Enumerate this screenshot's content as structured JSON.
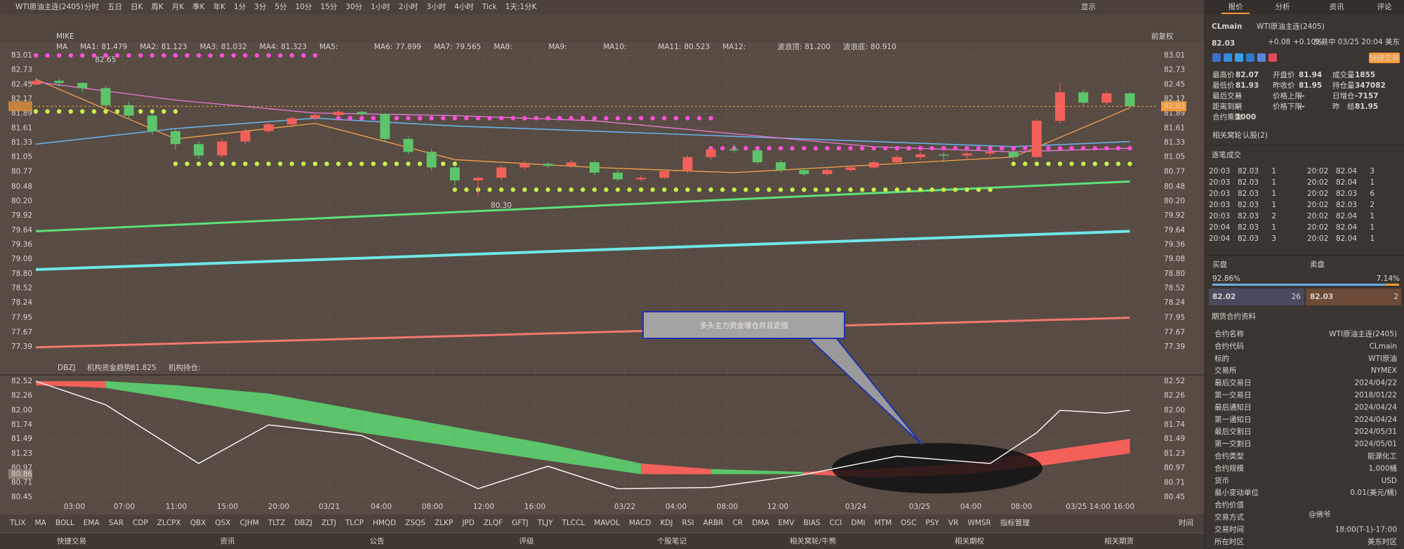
{
  "toolbar": {
    "symbol": "WTI原油主连(2405)",
    "periods": [
      "分时",
      "五日",
      "日K",
      "周K",
      "月K",
      "季K",
      "年K",
      "1分",
      "3分",
      "5分",
      "10分",
      "15分",
      "30分",
      "1小时",
      "2小时",
      "3小时",
      "4小时",
      "Tick",
      "1天:1分K"
    ],
    "active_period": 13,
    "display": "显示"
  },
  "subbar": {
    "template": "MIKE",
    "adjust": "前复权"
  },
  "ma_legend": {
    "title": "MA",
    "items": [
      {
        "label": "MA1:",
        "value": "81.479",
        "color": "#f5a04a"
      },
      {
        "label": "MA2:",
        "value": "81.123",
        "color": "#6aaee8"
      },
      {
        "label": "MA3:",
        "value": "81.032",
        "color": "#e77ad8"
      },
      {
        "label": "MA4:",
        "value": "81.323",
        "color": "#7cc6e0"
      },
      {
        "label": "MA5:",
        "value": "",
        "color": "#8ed36b"
      },
      {
        "label": "MA6:",
        "value": "77.899",
        "color": "#f0776f"
      },
      {
        "label": "MA7:",
        "value": "79.565",
        "color": "#6fe6e6"
      },
      {
        "label": "MA8:",
        "value": "",
        "color": "#e8d24a"
      },
      {
        "label": "MA9:",
        "value": "",
        "color": "#b08ee8"
      },
      {
        "label": "MA10:",
        "value": "",
        "color": "#c8c8c8"
      },
      {
        "label": "MA11:",
        "value": "80.523",
        "color": "#5ee07a"
      },
      {
        "label": "MA12:",
        "value": "",
        "color": "#a8e05e"
      },
      {
        "label": "波浪顶:",
        "value": "81.200",
        "color": "#ff4fd8"
      },
      {
        "label": "波浪底:",
        "value": "80.910",
        "color": "#c8f04a"
      }
    ]
  },
  "price_chart": {
    "type": "candlestick",
    "ylim": [
      77.39,
      83.01
    ],
    "yticks": [
      83.01,
      82.73,
      82.45,
      82.17,
      81.89,
      81.61,
      81.33,
      81.05,
      80.77,
      80.48,
      {
        "value": 80.2,
        "label": "80.20"
      },
      79.92,
      79.64,
      79.36,
      79.08,
      {
        "value": 78.8,
        "label": "78.80"
      },
      78.52,
      78.24,
      77.95,
      77.67,
      77.39
    ],
    "last_price": 82.03,
    "up_color": "#f3605a",
    "down_color": "#5cc46b",
    "candles": [
      [
        82.45,
        82.58,
        82.42,
        82.52
      ],
      [
        82.52,
        82.56,
        82.4,
        82.48
      ],
      [
        82.48,
        82.5,
        82.3,
        82.38
      ],
      [
        82.38,
        82.42,
        81.98,
        82.05
      ],
      [
        82.05,
        82.12,
        81.78,
        81.85
      ],
      [
        81.85,
        81.9,
        81.48,
        81.55
      ],
      [
        81.55,
        81.6,
        81.2,
        81.3
      ],
      [
        81.3,
        81.36,
        81.02,
        81.08
      ],
      [
        81.08,
        81.4,
        81.04,
        81.35
      ],
      [
        81.35,
        81.6,
        81.3,
        81.55
      ],
      [
        81.55,
        81.72,
        81.5,
        81.68
      ],
      [
        81.68,
        81.84,
        81.62,
        81.8
      ],
      [
        81.8,
        81.9,
        81.76,
        81.86
      ],
      [
        81.86,
        81.96,
        81.82,
        81.92
      ],
      [
        81.92,
        81.95,
        81.84,
        81.88
      ],
      [
        81.88,
        81.9,
        81.34,
        81.4
      ],
      [
        81.4,
        81.45,
        81.1,
        81.15
      ],
      [
        81.15,
        81.2,
        80.8,
        80.85
      ],
      [
        80.85,
        80.9,
        80.5,
        80.6
      ],
      [
        80.6,
        80.7,
        80.3,
        80.65
      ],
      [
        80.65,
        80.9,
        80.6,
        80.85
      ],
      [
        80.85,
        80.98,
        80.8,
        80.92
      ],
      [
        80.92,
        80.96,
        80.84,
        80.88
      ],
      [
        80.88,
        81.0,
        80.85,
        80.95
      ],
      [
        80.95,
        80.98,
        80.7,
        80.75
      ],
      [
        80.75,
        80.8,
        80.58,
        80.62
      ],
      [
        80.62,
        80.7,
        80.58,
        80.65
      ],
      [
        80.65,
        80.82,
        80.62,
        80.78
      ],
      [
        80.78,
        81.1,
        80.74,
        81.05
      ],
      [
        81.05,
        81.26,
        81.0,
        81.2
      ],
      [
        81.2,
        81.3,
        81.12,
        81.18
      ],
      [
        81.18,
        81.22,
        80.9,
        80.95
      ],
      [
        80.95,
        81.0,
        80.75,
        80.8
      ],
      [
        80.8,
        80.85,
        80.68,
        80.72
      ],
      [
        80.72,
        80.84,
        80.68,
        80.8
      ],
      [
        80.8,
        80.9,
        80.76,
        80.85
      ],
      [
        80.85,
        81.0,
        80.82,
        80.95
      ],
      [
        80.95,
        81.1,
        80.92,
        81.05
      ],
      [
        81.05,
        81.15,
        81.0,
        81.1
      ],
      [
        81.1,
        81.14,
        80.95,
        81.08
      ],
      [
        81.08,
        81.16,
        81.02,
        81.12
      ],
      [
        81.12,
        81.2,
        81.06,
        81.15
      ],
      [
        81.15,
        81.18,
        81.0,
        81.05
      ],
      [
        81.05,
        81.8,
        81.02,
        81.75
      ],
      [
        81.75,
        82.48,
        81.7,
        82.3
      ],
      [
        82.3,
        82.35,
        82.04,
        82.1
      ],
      [
        82.1,
        82.32,
        82.06,
        82.28
      ],
      [
        82.28,
        82.3,
        82.0,
        82.03
      ]
    ],
    "lines": [
      {
        "color": "#f5a04a",
        "width": 1.3,
        "x": [
          0,
          6,
          12,
          18,
          24,
          30,
          36,
          42,
          47
        ],
        "values": [
          82.55,
          81.4,
          81.7,
          81.0,
          80.85,
          80.75,
          80.9,
          81.05,
          82.0
        ]
      },
      {
        "color": "#6aaee8",
        "width": 1.6,
        "x": [
          0,
          6,
          12,
          18,
          24,
          30,
          36,
          42,
          47
        ],
        "values": [
          81.3,
          81.6,
          81.8,
          81.65,
          81.55,
          81.45,
          81.35,
          81.25,
          81.35
        ]
      },
      {
        "color": "#e77ad8",
        "width": 1.3,
        "x": [
          0,
          6,
          12,
          18,
          24,
          30,
          36,
          42,
          47
        ],
        "values": [
          82.5,
          82.15,
          81.9,
          81.85,
          81.75,
          81.5,
          81.25,
          81.15,
          81.22
        ]
      },
      {
        "color": "#5ee07a",
        "width": 3,
        "x": [
          0,
          47
        ],
        "values": [
          79.62,
          80.58
        ]
      },
      {
        "color": "#6fe6e6",
        "width": 4,
        "x": [
          0,
          47
        ],
        "values": [
          78.88,
          79.62
        ]
      },
      {
        "color": "#f0776f",
        "width": 3,
        "x": [
          0,
          47
        ],
        "values": [
          77.38,
          77.95
        ]
      }
    ],
    "dots": [
      {
        "color": "#ff4fd8",
        "level": 83.01,
        "from": 0,
        "to": 12
      },
      {
        "color": "#ff4fd8",
        "level": 81.8,
        "from": 13,
        "to": 29
      },
      {
        "color": "#ff4fd8",
        "level": 81.22,
        "from": 29,
        "to": 47
      },
      {
        "color": "#c8f04a",
        "level": 81.93,
        "from": 0,
        "to": 6
      },
      {
        "color": "#c8f04a",
        "level": 80.92,
        "from": 6,
        "to": 18
      },
      {
        "color": "#c8f04a",
        "level": 80.42,
        "from": 18,
        "to": 41
      },
      {
        "color": "#c8f04a",
        "level": 80.92,
        "from": 42,
        "to": 47
      }
    ],
    "notes": [
      {
        "at": 2,
        "value": 82.65
      },
      {
        "at": 19,
        "value": {
          "value": 80.3,
          "label": "80.30"
        }
      }
    ]
  },
  "indicator": {
    "name": "DBZJ",
    "trend_label": "机构资金趋势:",
    "trend_value": "81.825",
    "hold_label": "机构持仓:",
    "ylim": [
      80.45,
      82.52
    ],
    "yticks": [
      82.52,
      82.26,
      {
        "value": 82.0,
        "label": "82.00"
      },
      81.74,
      81.49,
      81.23,
      80.97,
      80.71,
      80.45
    ],
    "current": 80.86,
    "white_line": {
      "x": [
        0,
        3,
        7,
        10,
        14,
        19,
        22,
        25,
        29,
        33,
        37,
        41,
        43,
        44,
        46,
        47
      ],
      "values": [
        82.52,
        82.1,
        81.05,
        81.74,
        81.55,
        80.6,
        81.0,
        80.6,
        80.62,
        80.85,
        81.18,
        81.05,
        81.6,
        82.0,
        81.95,
        82.0
      ]
    },
    "ribbon": {
      "x": [
        0,
        3,
        6,
        10,
        14,
        18,
        22,
        26,
        29,
        33,
        36,
        40,
        43,
        47
      ],
      "upper": [
        82.52,
        82.52,
        82.45,
        82.3,
        82.0,
        81.7,
        81.4,
        81.05,
        80.95,
        80.9,
        80.95,
        81.05,
        81.25,
        81.49
      ],
      "lower": [
        82.45,
        82.4,
        82.2,
        81.9,
        81.6,
        81.35,
        81.1,
        80.86,
        80.86,
        80.86,
        80.8,
        80.86,
        81.0,
        81.23
      ],
      "colors": [
        "#f3605a",
        "#5cc46b",
        "#5cc46b",
        "#5cc46b",
        "#5cc46b",
        "#5cc46b",
        "#5cc46b",
        "#f3605a",
        "#5cc46b",
        "#f3605a",
        "#f3605a",
        "#f3605a",
        "#f3605a"
      ]
    }
  },
  "annotation": "多头主力资金增仓并且走强",
  "time_axis": [
    "03:00",
    "07:00",
    "11:00",
    "15:00",
    "20:00",
    "03/21",
    "04:00",
    "08:00",
    "12:00",
    "16:00",
    "03/22",
    "04:00",
    "08:00",
    "12:00",
    "03/24",
    "03/25",
    "04:00",
    "08:00",
    "03/25 14:00",
    "16:00"
  ],
  "indicator_tabs": {
    "items": [
      "TLIX",
      "MA",
      "BOLL",
      "EMA",
      "SAR",
      "CDP",
      "ZLCPX",
      "QBX",
      "QSX",
      "CJHM",
      "TLTZ",
      "DBZJ",
      "ZLTJ",
      "TLCP",
      "HMQD",
      "ZSQS",
      "ZLKP",
      "JPD",
      "ZLQF",
      "GFTJ",
      "TLJY",
      "TLCCL",
      "MAVOL",
      "MACD",
      "KDJ",
      "RSI",
      "ARBR",
      "CR",
      "DMA",
      "EMV",
      "BIAS",
      "CCI",
      "DMI",
      "MTM",
      "OSC",
      "PSY",
      "VR",
      "WMSR",
      "指标管理"
    ],
    "active": [
      1,
      11,
      38
    ],
    "time": "时间"
  },
  "footer": [
    "快捷交易",
    "资讯",
    "公告",
    "评级",
    "个股笔记",
    "相关窝轮/牛熊",
    "相关期权",
    "相关期货"
  ],
  "watermark": "@佛爷",
  "panel": {
    "tabs": [
      "报价",
      "分析",
      "资讯",
      "评论"
    ],
    "code": "CLmain",
    "name": "WTI原油主连(2405)",
    "price": "82.03",
    "change": "+0.08",
    "change_pct": "+0.10%",
    "status": "交易中 03/25 20:04 美东",
    "quick_trade": "快捷交易",
    "quote": [
      [
        [
          "最高价",
          "82.07"
        ],
        [
          "开盘价",
          "81.94"
        ],
        [
          "成交量",
          "1855"
        ]
      ],
      [
        [
          "最低价",
          "81.93"
        ],
        [
          "昨收价",
          "81.95"
        ],
        [
          "持仓量",
          "347082"
        ]
      ],
      [
        [
          "最后交易",
          "--"
        ],
        [
          "价格上限",
          "--"
        ],
        [
          "日增仓",
          "-7157"
        ]
      ],
      [
        [
          "距离到期",
          "--"
        ],
        [
          "价格下限",
          "--"
        ],
        [
          "昨　结",
          "81.95"
        ]
      ],
      [
        [
          "合约乘数",
          "1000"
        ]
      ]
    ],
    "related": "相关窝轮",
    "related_link": "认股(2)",
    "trades_title": "逐笔成交",
    "trades": [
      [
        [
          "20:03",
          "82.03",
          "1"
        ],
        [
          "20:02",
          "82.04",
          "3"
        ]
      ],
      [
        [
          "20:03",
          "82.03",
          "1"
        ],
        [
          "20:02",
          "82.04",
          "1"
        ]
      ],
      [
        [
          "20:03",
          "82.03",
          "1"
        ],
        [
          "20:02",
          "82.03",
          "6"
        ]
      ],
      [
        [
          "20:03",
          "82.03",
          "1"
        ],
        [
          "20:02",
          "82.03",
          "2"
        ]
      ],
      [
        [
          "20:03",
          "82.03",
          "2"
        ],
        [
          "20:02",
          "82.04",
          "1"
        ]
      ],
      [
        [
          "20:04",
          "82.03",
          "1"
        ],
        [
          "20:02",
          "82.04",
          "1"
        ]
      ],
      [
        [
          "20:04",
          "82.03",
          "3"
        ],
        [
          "20:02",
          "82.04",
          "1"
        ]
      ]
    ],
    "book": {
      "bid_title": "买盘",
      "ask_title": "卖盘",
      "bid_pct": 92.86,
      "ask_pct": 7.14,
      "bid_pct_label": "92.86%",
      "ask_pct_label": "7.14%",
      "bid": "82.02",
      "bid_size": "26",
      "ask": "82.03",
      "ask_size": "2"
    },
    "info_title": "期货合约资料",
    "info": [
      [
        "合约名称",
        "WTI原油主连(2405)"
      ],
      [
        "合约代码",
        "CLmain"
      ],
      [
        "标的",
        "WTI原油"
      ],
      [
        "交易所",
        "NYMEX"
      ],
      [
        "最后交易日",
        "2024/04/22"
      ],
      [
        "第一交易日",
        "2018/01/22"
      ],
      [
        "最后通知日",
        "2024/04/24"
      ],
      [
        "第一通知日",
        "2024/04/24"
      ],
      [
        "最后交割日",
        "2024/05/31"
      ],
      [
        "第一交割日",
        "2024/05/01"
      ],
      [
        "合约类型",
        "能源化工"
      ],
      [
        "合约规模",
        "1,000桶"
      ],
      [
        "货币",
        "USD"
      ],
      [
        "最小变动单位",
        "0.01(美元/桶)"
      ],
      [
        "合约价值",
        ""
      ],
      [
        "交易方式",
        ""
      ],
      [
        "交易时间",
        "18:00(T-1)-17:00"
      ],
      [
        "所在时区",
        "美东时区"
      ]
    ]
  }
}
